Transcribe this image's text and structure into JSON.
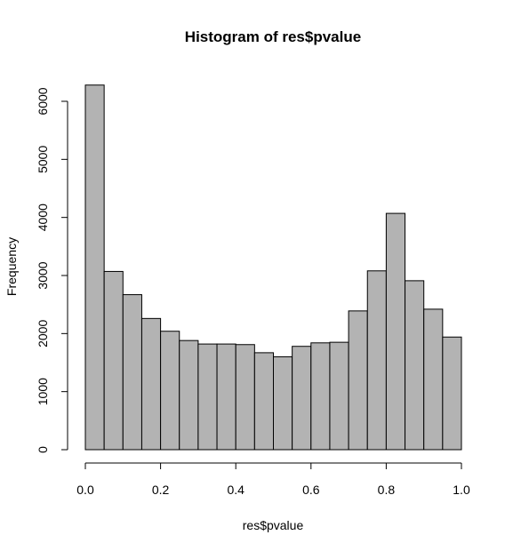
{
  "chart_data": {
    "type": "bar",
    "title": "Histogram of res$pvalue",
    "xlabel": "res$pvalue",
    "ylabel": "Frequency",
    "x_ticks": [
      "0.0",
      "0.2",
      "0.4",
      "0.6",
      "0.8",
      "1.0"
    ],
    "x_tick_values": [
      0.0,
      0.2,
      0.4,
      0.6,
      0.8,
      1.0
    ],
    "y_ticks": [
      "0",
      "1000",
      "2000",
      "3000",
      "4000",
      "5000",
      "6000"
    ],
    "y_tick_values": [
      0,
      1000,
      2000,
      3000,
      4000,
      5000,
      6000
    ],
    "xlim": [
      0,
      1
    ],
    "ylim": [
      0,
      6000
    ],
    "bin_width": 0.05,
    "bins": [
      {
        "start": 0.0,
        "end": 0.05,
        "value": 6280
      },
      {
        "start": 0.05,
        "end": 0.1,
        "value": 3070
      },
      {
        "start": 0.1,
        "end": 0.15,
        "value": 2670
      },
      {
        "start": 0.15,
        "end": 0.2,
        "value": 2260
      },
      {
        "start": 0.2,
        "end": 0.25,
        "value": 2040
      },
      {
        "start": 0.25,
        "end": 0.3,
        "value": 1880
      },
      {
        "start": 0.3,
        "end": 0.35,
        "value": 1820
      },
      {
        "start": 0.35,
        "end": 0.4,
        "value": 1820
      },
      {
        "start": 0.4,
        "end": 0.45,
        "value": 1810
      },
      {
        "start": 0.45,
        "end": 0.5,
        "value": 1670
      },
      {
        "start": 0.5,
        "end": 0.55,
        "value": 1600
      },
      {
        "start": 0.55,
        "end": 0.6,
        "value": 1780
      },
      {
        "start": 0.6,
        "end": 0.65,
        "value": 1840
      },
      {
        "start": 0.65,
        "end": 0.7,
        "value": 1850
      },
      {
        "start": 0.7,
        "end": 0.75,
        "value": 2390
      },
      {
        "start": 0.75,
        "end": 0.8,
        "value": 3080
      },
      {
        "start": 0.8,
        "end": 0.85,
        "value": 4070
      },
      {
        "start": 0.85,
        "end": 0.9,
        "value": 2910
      },
      {
        "start": 0.9,
        "end": 0.95,
        "value": 2420
      },
      {
        "start": 0.95,
        "end": 1.0,
        "value": 1940
      }
    ],
    "bar_color": "#b3b3b3",
    "bar_border_color": "#000000",
    "grid": false,
    "legend": false
  }
}
